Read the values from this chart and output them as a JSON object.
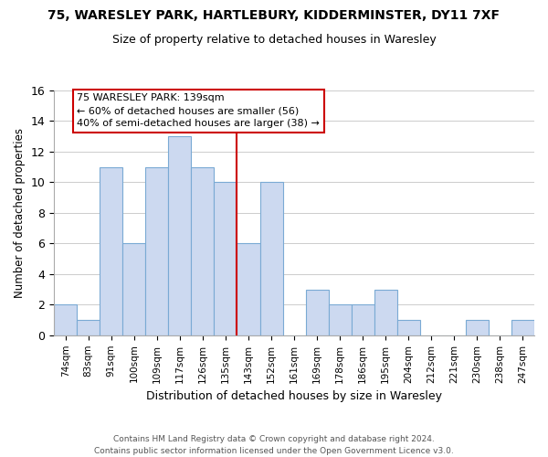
{
  "title1": "75, WARESLEY PARK, HARTLEBURY, KIDDERMINSTER, DY11 7XF",
  "title2": "Size of property relative to detached houses in Waresley",
  "xlabel": "Distribution of detached houses by size in Waresley",
  "ylabel": "Number of detached properties",
  "bar_labels": [
    "74sqm",
    "83sqm",
    "91sqm",
    "100sqm",
    "109sqm",
    "117sqm",
    "126sqm",
    "135sqm",
    "143sqm",
    "152sqm",
    "161sqm",
    "169sqm",
    "178sqm",
    "186sqm",
    "195sqm",
    "204sqm",
    "212sqm",
    "221sqm",
    "230sqm",
    "238sqm",
    "247sqm"
  ],
  "bar_values": [
    2,
    1,
    11,
    6,
    11,
    13,
    11,
    10,
    6,
    10,
    0,
    3,
    2,
    2,
    3,
    1,
    0,
    0,
    1,
    0,
    1
  ],
  "bar_color": "#ccd9f0",
  "bar_edge_color": "#7aaad4",
  "vline_color": "#cc0000",
  "annotation_title": "75 WARESLEY PARK: 139sqm",
  "annotation_line1": "← 60% of detached houses are smaller (56)",
  "annotation_line2": "40% of semi-detached houses are larger (38) →",
  "annotation_box_color": "#ffffff",
  "annotation_box_edge": "#cc0000",
  "ylim": [
    0,
    16
  ],
  "yticks": [
    0,
    2,
    4,
    6,
    8,
    10,
    12,
    14,
    16
  ],
  "footer1": "Contains HM Land Registry data © Crown copyright and database right 2024.",
  "footer2": "Contains public sector information licensed under the Open Government Licence v3.0.",
  "bg_color": "#ffffff",
  "grid_color": "#cccccc"
}
